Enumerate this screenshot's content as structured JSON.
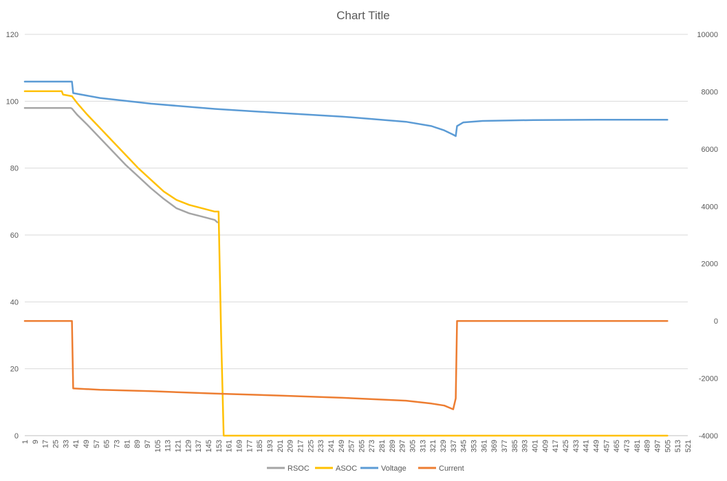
{
  "chart_data": {
    "type": "line",
    "title": "Chart Title",
    "xlabel": "",
    "ylabel": "",
    "x_tick_labels": [
      "1",
      "9",
      "17",
      "25",
      "33",
      "41",
      "49",
      "57",
      "65",
      "73",
      "81",
      "89",
      "97",
      "105",
      "113",
      "121",
      "129",
      "137",
      "145",
      "153",
      "161",
      "169",
      "177",
      "185",
      "193",
      "201",
      "209",
      "217",
      "225",
      "233",
      "241",
      "249",
      "257",
      "265",
      "273",
      "281",
      "289",
      "297",
      "305",
      "313",
      "321",
      "329",
      "337",
      "345",
      "353",
      "361",
      "369",
      "377",
      "385",
      "393",
      "401",
      "409",
      "417",
      "425",
      "433",
      "441",
      "449",
      "457",
      "465",
      "473",
      "481",
      "489",
      "497",
      "505",
      "513",
      "521"
    ],
    "xlim": [
      1,
      521
    ],
    "y_left": {
      "lim": [
        0,
        120
      ],
      "ticks": [
        0,
        20,
        40,
        60,
        80,
        100,
        120
      ]
    },
    "y_right": {
      "lim": [
        -4000,
        10000
      ],
      "ticks": [
        -4000,
        -2000,
        0,
        2000,
        4000,
        6000,
        8000,
        10000
      ]
    },
    "grid": "horizontal",
    "legend_position": "bottom",
    "series": [
      {
        "name": "RSOC",
        "axis": "left",
        "color": "#A5A5A5",
        "points": [
          [
            1,
            98
          ],
          [
            37,
            98
          ],
          [
            38,
            97.8
          ],
          [
            42,
            96
          ],
          [
            50,
            93
          ],
          [
            60,
            89
          ],
          [
            70,
            85
          ],
          [
            80,
            81
          ],
          [
            90,
            77.5
          ],
          [
            100,
            74
          ],
          [
            110,
            70.8
          ],
          [
            120,
            68
          ],
          [
            130,
            66.5
          ],
          [
            140,
            65.5
          ],
          [
            150,
            64.5
          ],
          [
            152,
            63.8
          ]
        ]
      },
      {
        "name": "ASOC",
        "axis": "left",
        "color": "#FFC000",
        "points": [
          [
            1,
            103
          ],
          [
            30,
            103
          ],
          [
            31,
            102
          ],
          [
            38,
            101.5
          ],
          [
            42,
            99.5
          ],
          [
            50,
            96
          ],
          [
            60,
            92
          ],
          [
            70,
            88
          ],
          [
            80,
            84
          ],
          [
            90,
            80
          ],
          [
            100,
            76.5
          ],
          [
            110,
            73
          ],
          [
            120,
            70.5
          ],
          [
            130,
            69
          ],
          [
            140,
            68
          ],
          [
            150,
            67
          ],
          [
            153,
            67
          ],
          [
            155,
            30
          ],
          [
            157,
            0
          ],
          [
            505,
            0
          ]
        ]
      },
      {
        "name": "Voltage",
        "axis": "right",
        "color": "#5B9BD5",
        "points": [
          [
            1,
            8350
          ],
          [
            38,
            8350
          ],
          [
            39,
            7950
          ],
          [
            60,
            7780
          ],
          [
            100,
            7580
          ],
          [
            150,
            7400
          ],
          [
            200,
            7260
          ],
          [
            250,
            7130
          ],
          [
            300,
            6950
          ],
          [
            320,
            6800
          ],
          [
            330,
            6650
          ],
          [
            337,
            6500
          ],
          [
            339,
            6450
          ],
          [
            340,
            6800
          ],
          [
            345,
            6930
          ],
          [
            360,
            6980
          ],
          [
            400,
            7010
          ],
          [
            450,
            7020
          ],
          [
            505,
            7020
          ]
        ]
      },
      {
        "name": "Current",
        "axis": "right",
        "color": "#ED7D31",
        "points": [
          [
            1,
            0
          ],
          [
            38,
            0
          ],
          [
            39,
            -2350
          ],
          [
            60,
            -2400
          ],
          [
            100,
            -2450
          ],
          [
            150,
            -2530
          ],
          [
            200,
            -2600
          ],
          [
            250,
            -2680
          ],
          [
            300,
            -2780
          ],
          [
            320,
            -2880
          ],
          [
            330,
            -2950
          ],
          [
            337,
            -3080
          ],
          [
            339,
            -2700
          ],
          [
            340,
            0
          ],
          [
            505,
            0
          ]
        ]
      }
    ]
  }
}
